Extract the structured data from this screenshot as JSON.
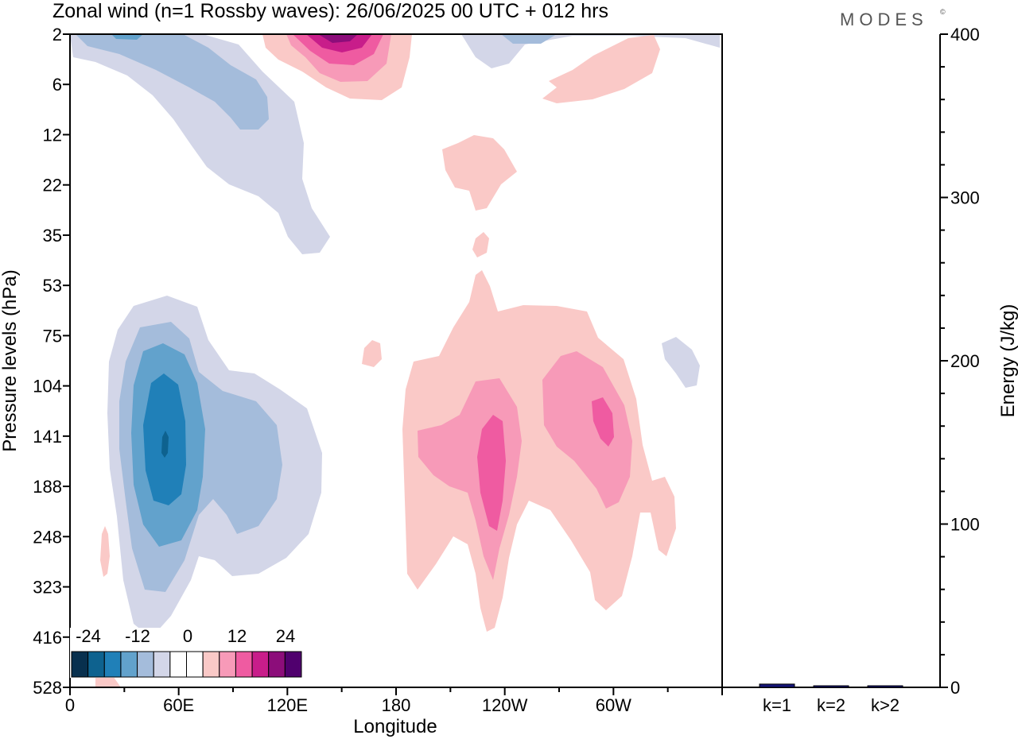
{
  "title": "Zonal wind (n=1 Rossby waves):  26/06/2025  00 UTC  + 012 hrs",
  "brand": "MODES",
  "brand_mark": "©",
  "chart_data": [
    {
      "type": "heatmap",
      "xlabel": "Longitude",
      "ylabel": "Pressure levels (hPa)",
      "x_ticks": [
        "0",
        "60E",
        "120E",
        "180",
        "120W",
        "60W"
      ],
      "x_tick_deg": [
        0,
        60,
        120,
        180,
        240,
        300
      ],
      "xlim": [
        0,
        360
      ],
      "y_ticks": [
        "2",
        "6",
        "12",
        "22",
        "35",
        "53",
        "75",
        "104",
        "141",
        "188",
        "248",
        "323",
        "416",
        "528"
      ],
      "colorbar": {
        "labels": [
          "-24",
          "-12",
          "0",
          "12",
          "24"
        ],
        "colors": [
          "#08304e",
          "#0e628f",
          "#2080b8",
          "#62a2cc",
          "#a4bcdb",
          "#d3d6e8",
          "#ffffff",
          "#ffffff",
          "#fac9c7",
          "#f79ab8",
          "#ef5ba1",
          "#c81d8a",
          "#8c0d7a",
          "#50006e"
        ]
      },
      "contour_levels_approx": [
        -24,
        -20,
        -16,
        -12,
        -8,
        -4,
        0,
        4,
        8,
        12,
        16,
        20,
        24
      ]
    },
    {
      "type": "bar",
      "categories": [
        "k=1",
        "k=2",
        "k>2"
      ],
      "values": [
        2,
        0.5,
        0.5
      ],
      "ylabel": "Energy (J/kg)",
      "ylim": [
        0,
        400
      ],
      "y_ticks": [
        "0",
        "100",
        "200",
        "300",
        "400"
      ],
      "bar_color": "#141478"
    }
  ]
}
